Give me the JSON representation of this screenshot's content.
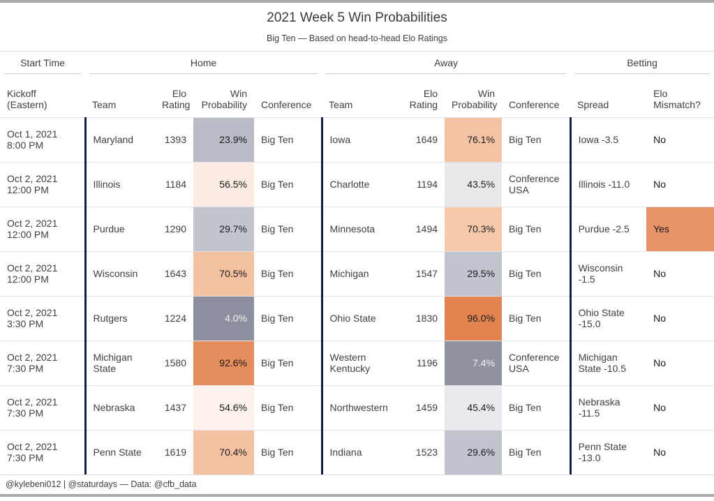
{
  "title": "2021 Week 5 Win Probabilities",
  "subtitle": "Big Ten — Based on head-to-head Elo Ratings",
  "footer": "@kylebeni012 | @staturdays — Data: @cfb_data",
  "colors": {
    "divider_navy": "#14213a",
    "row_border": "#e3e3e5",
    "spanner_underline": "#cfcfcf",
    "page_bar_gray": "#a9a9a9",
    "mismatch_yes_bg": "#e8936a",
    "prob_dark_text": "#f4f2f1",
    "prob_light_text": "#1a1a1a"
  },
  "spanners": [
    {
      "label": "Start Time"
    },
    {
      "label": "Home"
    },
    {
      "label": "Away"
    },
    {
      "label": "Betting"
    }
  ],
  "columns": [
    "Kickoff\n(Eastern)",
    "Team",
    "Elo\nRating",
    "Win\nProbability",
    "Conference",
    "Team",
    "Elo\nRating",
    "Win\nProbability",
    "Conference",
    "Spread",
    "Elo\nMismatch?"
  ],
  "rows": [
    {
      "kickoff": "Oct 1, 2021\n8:00 PM",
      "home": {
        "team": "Maryland",
        "elo": "1393",
        "win_prob": "23.9%",
        "prob_bg": "#b9bbc6",
        "prob_fg": "#1a1a1a",
        "conference": "Big Ten"
      },
      "away": {
        "team": "Iowa",
        "elo": "1649",
        "win_prob": "76.1%",
        "prob_bg": "#f4c3a4",
        "prob_fg": "#1a1a1a",
        "conference": "Big Ten"
      },
      "betting": {
        "spread": "Iowa -3.5",
        "mismatch": "No",
        "mismatch_bg": "#ffffff"
      }
    },
    {
      "kickoff": "Oct 2, 2021\n12:00 PM",
      "home": {
        "team": "Illinois",
        "elo": "1184",
        "win_prob": "56.5%",
        "prob_bg": "#fcebe2",
        "prob_fg": "#1a1a1a",
        "conference": "Big Ten"
      },
      "away": {
        "team": "Charlotte",
        "elo": "1194",
        "win_prob": "43.5%",
        "prob_bg": "#e9e9ec",
        "prob_fg": "#1a1a1a",
        "conference": "Conference USA"
      },
      "betting": {
        "spread": "Illinois -11.0",
        "mismatch": "No",
        "mismatch_bg": "#ffffff"
      }
    },
    {
      "kickoff": "Oct 2, 2021\n12:00 PM",
      "home": {
        "team": "Purdue",
        "elo": "1290",
        "win_prob": "29.7%",
        "prob_bg": "#c2c4ce",
        "prob_fg": "#1a1a1a",
        "conference": "Big Ten"
      },
      "away": {
        "team": "Minnesota",
        "elo": "1494",
        "win_prob": "70.3%",
        "prob_bg": "#f6c9ac",
        "prob_fg": "#1a1a1a",
        "conference": "Big Ten"
      },
      "betting": {
        "spread": "Purdue -2.5",
        "mismatch": "Yes",
        "mismatch_bg": "#e8936a"
      }
    },
    {
      "kickoff": "Oct 2, 2021\n12:00 PM",
      "home": {
        "team": "Wisconsin",
        "elo": "1643",
        "win_prob": "70.5%",
        "prob_bg": "#f3c0a0",
        "prob_fg": "#1a1a1a",
        "conference": "Big Ten"
      },
      "away": {
        "team": "Michigan",
        "elo": "1547",
        "win_prob": "29.5%",
        "prob_bg": "#c1c3ce",
        "prob_fg": "#1a1a1a",
        "conference": "Big Ten"
      },
      "betting": {
        "spread": "Wisconsin -1.5",
        "mismatch": "No",
        "mismatch_bg": "#ffffff"
      }
    },
    {
      "kickoff": "Oct 2, 2021\n3:30 PM",
      "home": {
        "team": "Rutgers",
        "elo": "1224",
        "win_prob": "4.0%",
        "prob_bg": "#8c8f9e",
        "prob_fg": "#f4f2f1",
        "conference": "Big Ten"
      },
      "away": {
        "team": "Ohio State",
        "elo": "1830",
        "win_prob": "96.0%",
        "prob_bg": "#e28350",
        "prob_fg": "#1a1a1a",
        "conference": "Big Ten"
      },
      "betting": {
        "spread": "Ohio State -15.0",
        "mismatch": "No",
        "mismatch_bg": "#ffffff"
      }
    },
    {
      "kickoff": "Oct 2, 2021\n7:30 PM",
      "home": {
        "team": "Michigan State",
        "elo": "1580",
        "win_prob": "92.6%",
        "prob_bg": "#e68d5d",
        "prob_fg": "#1a1a1a",
        "conference": "Big Ten"
      },
      "away": {
        "team": "Western Kentucky",
        "elo": "1196",
        "win_prob": "7.4%",
        "prob_bg": "#8f929f",
        "prob_fg": "#f4f2f1",
        "conference": "Conference USA"
      },
      "betting": {
        "spread": "Michigan State -10.5",
        "mismatch": "No",
        "mismatch_bg": "#ffffff"
      }
    },
    {
      "kickoff": "Oct 2, 2021\n7:30 PM",
      "home": {
        "team": "Nebraska",
        "elo": "1437",
        "win_prob": "54.6%",
        "prob_bg": "#fcf1eb",
        "prob_fg": "#1a1a1a",
        "conference": "Big Ten"
      },
      "away": {
        "team": "Northwestern",
        "elo": "1459",
        "win_prob": "45.4%",
        "prob_bg": "#eaeaee",
        "prob_fg": "#1a1a1a",
        "conference": "Big Ten"
      },
      "betting": {
        "spread": "Nebraska -11.5",
        "mismatch": "No",
        "mismatch_bg": "#ffffff"
      }
    },
    {
      "kickoff": "Oct 2, 2021\n7:30 PM",
      "home": {
        "team": "Penn State",
        "elo": "1619",
        "win_prob": "70.4%",
        "prob_bg": "#f4c2a2",
        "prob_fg": "#1a1a1a",
        "conference": "Big Ten"
      },
      "away": {
        "team": "Indiana",
        "elo": "1523",
        "win_prob": "29.6%",
        "prob_bg": "#c1c4ce",
        "prob_fg": "#1a1a1a",
        "conference": "Big Ten"
      },
      "betting": {
        "spread": "Penn State -13.0",
        "mismatch": "No",
        "mismatch_bg": "#ffffff"
      }
    }
  ],
  "chart_data": {
    "type": "table",
    "title": "2021 Week 5 Win Probabilities",
    "subtitle": "Big Ten — Based on head-to-head Elo Ratings",
    "column_groups": [
      "Start Time",
      "Home",
      "Away",
      "Betting"
    ],
    "columns": [
      "Kickoff (Eastern)",
      "Home Team",
      "Home Elo Rating",
      "Home Win Probability",
      "Home Conference",
      "Away Team",
      "Away Elo Rating",
      "Away Win Probability",
      "Away Conference",
      "Spread",
      "Elo Mismatch?"
    ],
    "rows": [
      [
        "Oct 1, 2021 8:00 PM",
        "Maryland",
        1393,
        "23.9%",
        "Big Ten",
        "Iowa",
        1649,
        "76.1%",
        "Big Ten",
        "Iowa -3.5",
        "No"
      ],
      [
        "Oct 2, 2021 12:00 PM",
        "Illinois",
        1184,
        "56.5%",
        "Big Ten",
        "Charlotte",
        1194,
        "43.5%",
        "Conference USA",
        "Illinois -11.0",
        "No"
      ],
      [
        "Oct 2, 2021 12:00 PM",
        "Purdue",
        1290,
        "29.7%",
        "Big Ten",
        "Minnesota",
        1494,
        "70.3%",
        "Big Ten",
        "Purdue -2.5",
        "Yes"
      ],
      [
        "Oct 2, 2021 12:00 PM",
        "Wisconsin",
        1643,
        "70.5%",
        "Big Ten",
        "Michigan",
        1547,
        "29.5%",
        "Big Ten",
        "Wisconsin -1.5",
        "No"
      ],
      [
        "Oct 2, 2021 3:30 PM",
        "Rutgers",
        1224,
        "4.0%",
        "Big Ten",
        "Ohio State",
        1830,
        "96.0%",
        "Big Ten",
        "Ohio State -15.0",
        "No"
      ],
      [
        "Oct 2, 2021 7:30 PM",
        "Michigan State",
        1580,
        "92.6%",
        "Big Ten",
        "Western Kentucky",
        1196,
        "7.4%",
        "Conference USA",
        "Michigan State -10.5",
        "No"
      ],
      [
        "Oct 2, 2021 7:30 PM",
        "Nebraska",
        1437,
        "54.6%",
        "Big Ten",
        "Northwestern",
        1459,
        "45.4%",
        "Big Ten",
        "Nebraska -11.5",
        "No"
      ],
      [
        "Oct 2, 2021 7:30 PM",
        "Penn State",
        1619,
        "70.4%",
        "Big Ten",
        "Indiana",
        1523,
        "29.6%",
        "Big Ten",
        "Penn State -13.0",
        "No"
      ]
    ],
    "source_note": "@kylebeni012 | @staturdays — Data: @cfb_data",
    "legend": "Win Probability cells shaded on diverging gray(low)→white(50%)→orange(high) scale; Elo Mismatch 'Yes' highlighted orange"
  }
}
